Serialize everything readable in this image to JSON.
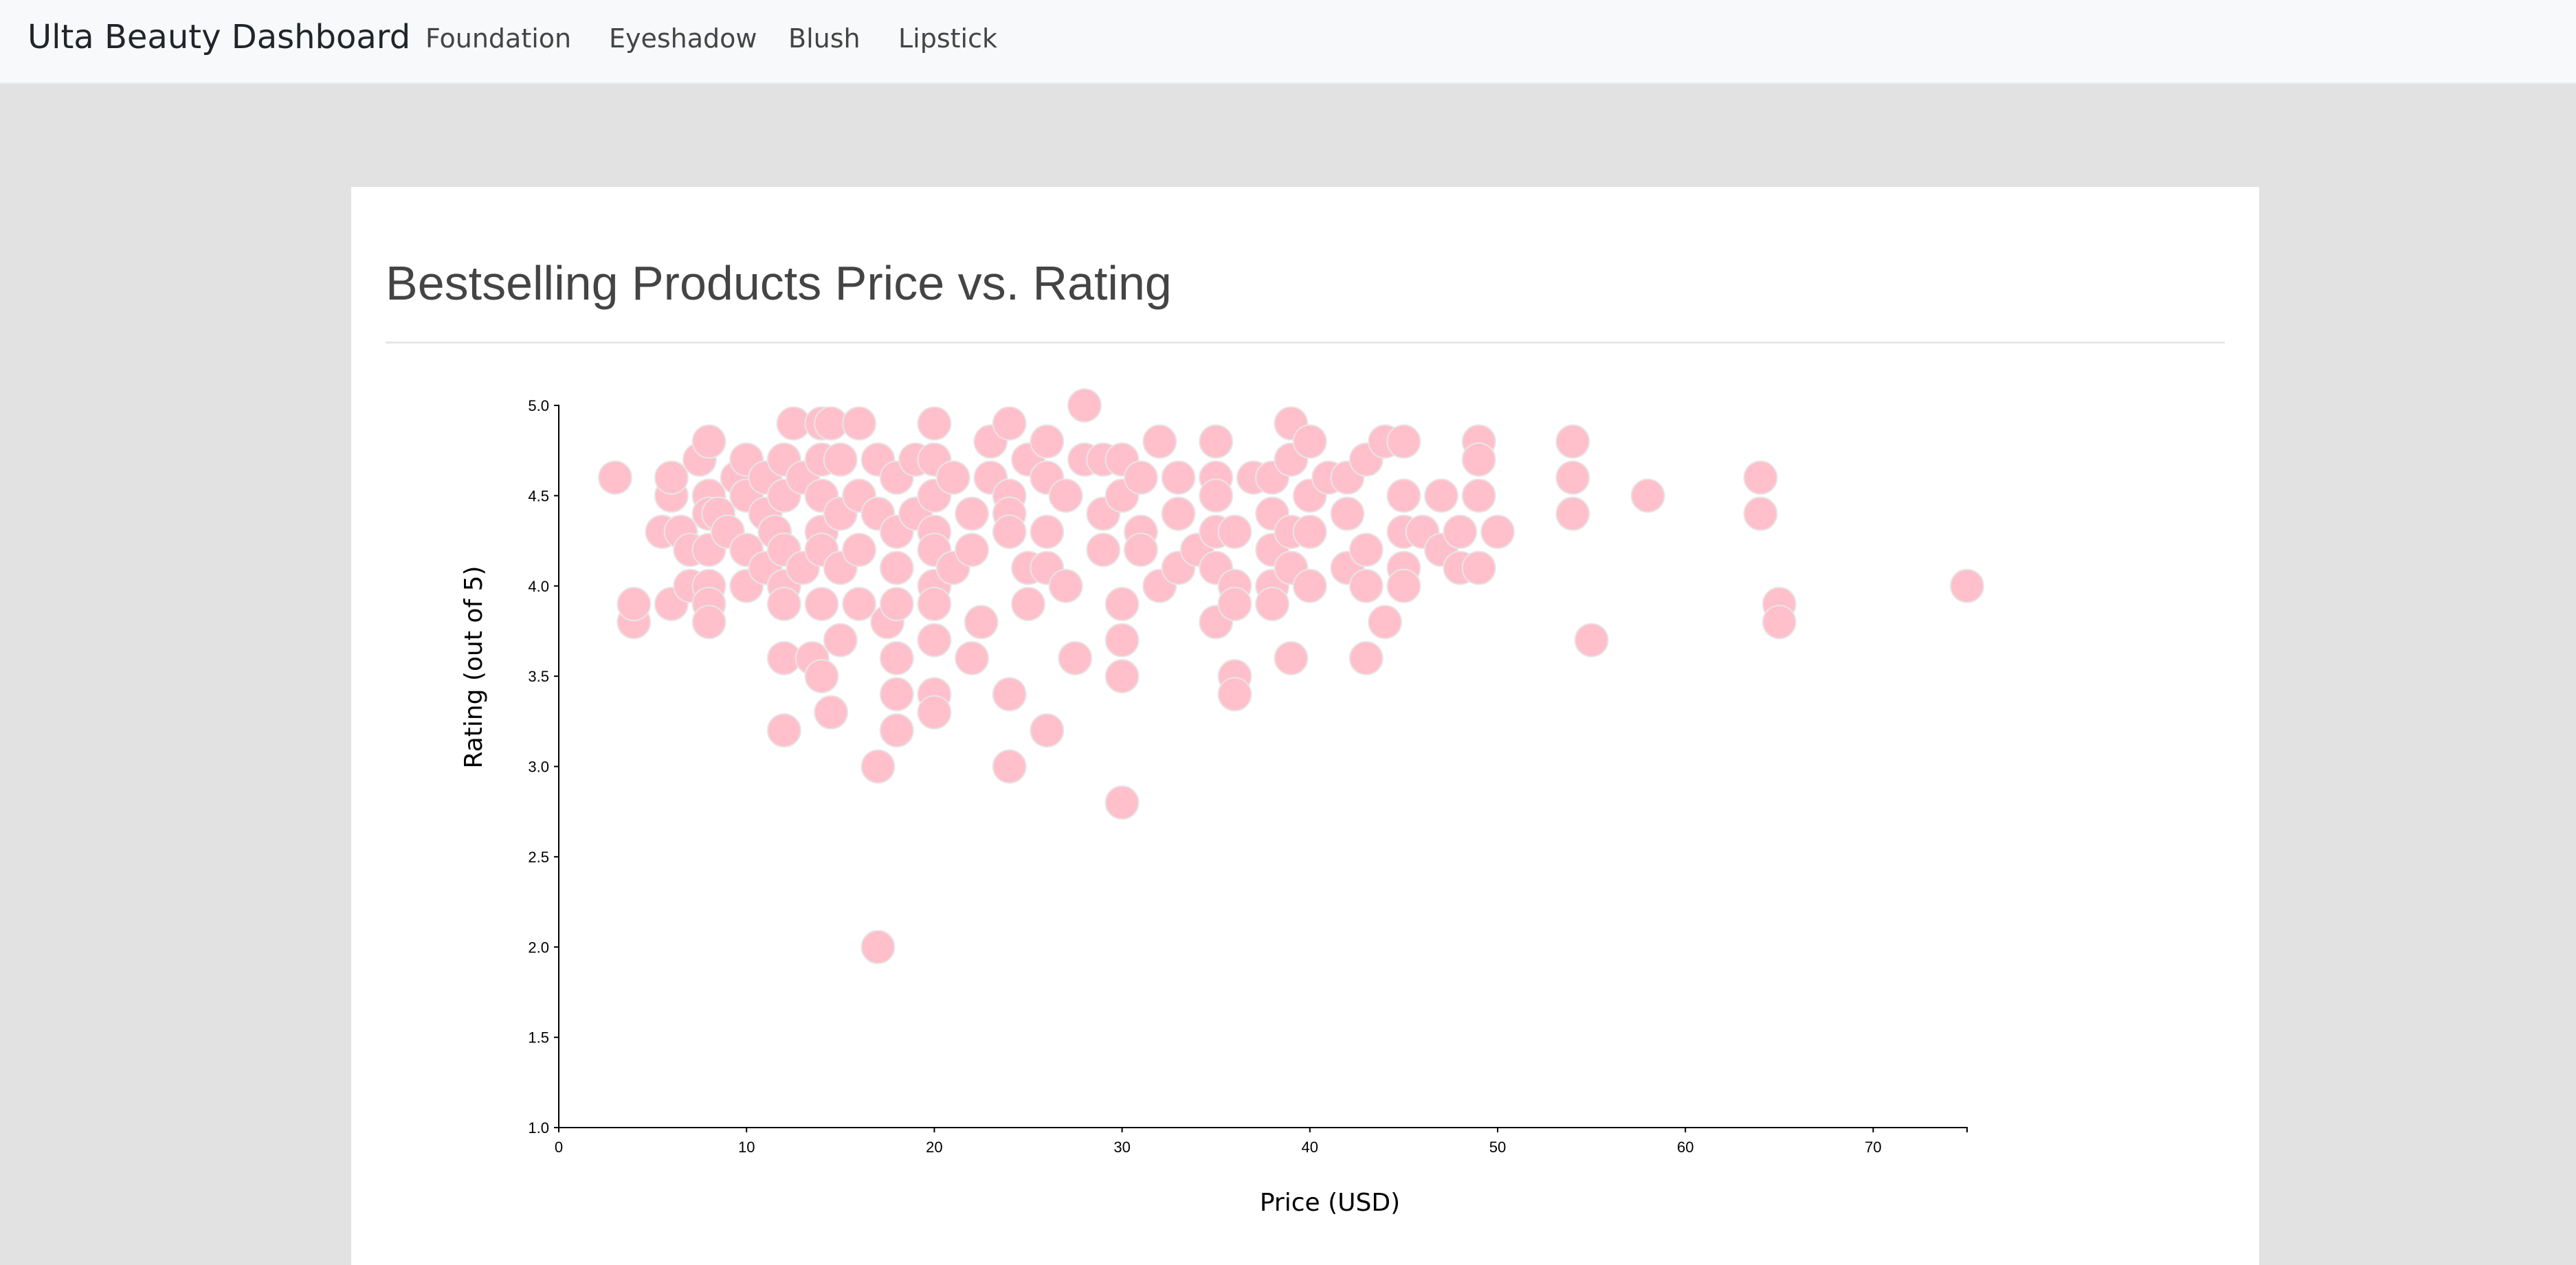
{
  "navbar": {
    "brand": "Ulta Beauty Dashboard",
    "links": [
      "Foundation",
      "Eyeshadow",
      "Blush",
      "Lipstick"
    ]
  },
  "page": {
    "title": "Bestselling Products Price vs. Rating"
  },
  "colors": {
    "point_fill": "#ffc0cb",
    "point_stroke": "#e6e6e6",
    "page_background": "#e2e2e2",
    "navbar_background": "#f8f9fa"
  },
  "chart_data": {
    "type": "scatter",
    "title": "",
    "xlabel": "Price (USD)",
    "ylabel": "Rating (out of 5)",
    "xlim": [
      0,
      75
    ],
    "ylim": [
      1.0,
      5.0
    ],
    "x_ticks": [
      "0",
      "10",
      "20",
      "30",
      "40",
      "50",
      "60",
      "70"
    ],
    "y_ticks": [
      "1.0",
      "1.5",
      "2.0",
      "2.5",
      "3.0",
      "3.5",
      "4.0",
      "4.5",
      "5.0"
    ],
    "grid": false,
    "points": [
      {
        "x": 3,
        "y": 4.6
      },
      {
        "x": 4,
        "y": 3.8
      },
      {
        "x": 4,
        "y": 3.9
      },
      {
        "x": 5.5,
        "y": 4.3
      },
      {
        "x": 6,
        "y": 4.5
      },
      {
        "x": 6,
        "y": 3.9
      },
      {
        "x": 6,
        "y": 4.6
      },
      {
        "x": 6.5,
        "y": 4.3
      },
      {
        "x": 7,
        "y": 4.2
      },
      {
        "x": 7,
        "y": 4.0
      },
      {
        "x": 7.5,
        "y": 4.7
      },
      {
        "x": 8,
        "y": 4.8
      },
      {
        "x": 8,
        "y": 4.5
      },
      {
        "x": 8,
        "y": 4.4
      },
      {
        "x": 8,
        "y": 4.2
      },
      {
        "x": 8,
        "y": 4.0
      },
      {
        "x": 8,
        "y": 3.9
      },
      {
        "x": 8,
        "y": 3.8
      },
      {
        "x": 8.5,
        "y": 4.4
      },
      {
        "x": 9,
        "y": 4.3
      },
      {
        "x": 9.5,
        "y": 4.6
      },
      {
        "x": 10,
        "y": 4.7
      },
      {
        "x": 10,
        "y": 4.5
      },
      {
        "x": 10,
        "y": 4.2
      },
      {
        "x": 10,
        "y": 4.0
      },
      {
        "x": 11,
        "y": 4.6
      },
      {
        "x": 11,
        "y": 4.4
      },
      {
        "x": 11,
        "y": 4.1
      },
      {
        "x": 11.5,
        "y": 4.3
      },
      {
        "x": 12,
        "y": 4.7
      },
      {
        "x": 12,
        "y": 4.5
      },
      {
        "x": 12,
        "y": 4.2
      },
      {
        "x": 12,
        "y": 4.0
      },
      {
        "x": 12,
        "y": 3.9
      },
      {
        "x": 12,
        "y": 3.6
      },
      {
        "x": 12,
        "y": 3.2
      },
      {
        "x": 12.5,
        "y": 4.9
      },
      {
        "x": 13,
        "y": 4.6
      },
      {
        "x": 13,
        "y": 4.1
      },
      {
        "x": 13.5,
        "y": 3.6
      },
      {
        "x": 14,
        "y": 4.9
      },
      {
        "x": 14,
        "y": 4.7
      },
      {
        "x": 14,
        "y": 4.5
      },
      {
        "x": 14,
        "y": 4.3
      },
      {
        "x": 14,
        "y": 4.2
      },
      {
        "x": 14,
        "y": 3.9
      },
      {
        "x": 14,
        "y": 3.5
      },
      {
        "x": 14.5,
        "y": 4.9
      },
      {
        "x": 14.5,
        "y": 3.3
      },
      {
        "x": 15,
        "y": 4.7
      },
      {
        "x": 15,
        "y": 4.4
      },
      {
        "x": 15,
        "y": 4.1
      },
      {
        "x": 15,
        "y": 3.7
      },
      {
        "x": 16,
        "y": 4.9
      },
      {
        "x": 16,
        "y": 4.5
      },
      {
        "x": 16,
        "y": 4.2
      },
      {
        "x": 16,
        "y": 3.9
      },
      {
        "x": 17,
        "y": 4.7
      },
      {
        "x": 17,
        "y": 4.4
      },
      {
        "x": 17,
        "y": 3.0
      },
      {
        "x": 17,
        "y": 2.0
      },
      {
        "x": 17.5,
        "y": 3.8
      },
      {
        "x": 18,
        "y": 4.6
      },
      {
        "x": 18,
        "y": 4.3
      },
      {
        "x": 18,
        "y": 4.1
      },
      {
        "x": 18,
        "y": 3.9
      },
      {
        "x": 18,
        "y": 3.6
      },
      {
        "x": 18,
        "y": 3.4
      },
      {
        "x": 18,
        "y": 3.2
      },
      {
        "x": 19,
        "y": 4.7
      },
      {
        "x": 19,
        "y": 4.4
      },
      {
        "x": 20,
        "y": 4.9
      },
      {
        "x": 20,
        "y": 4.7
      },
      {
        "x": 20,
        "y": 4.5
      },
      {
        "x": 20,
        "y": 4.3
      },
      {
        "x": 20,
        "y": 4.2
      },
      {
        "x": 20,
        "y": 4.0
      },
      {
        "x": 20,
        "y": 3.9
      },
      {
        "x": 20,
        "y": 3.7
      },
      {
        "x": 20,
        "y": 3.4
      },
      {
        "x": 20,
        "y": 3.3
      },
      {
        "x": 21,
        "y": 4.6
      },
      {
        "x": 21,
        "y": 4.1
      },
      {
        "x": 22,
        "y": 4.4
      },
      {
        "x": 22,
        "y": 4.2
      },
      {
        "x": 22,
        "y": 3.6
      },
      {
        "x": 22.5,
        "y": 3.8
      },
      {
        "x": 23,
        "y": 4.8
      },
      {
        "x": 23,
        "y": 4.6
      },
      {
        "x": 24,
        "y": 4.9
      },
      {
        "x": 24,
        "y": 4.5
      },
      {
        "x": 24,
        "y": 4.4
      },
      {
        "x": 24,
        "y": 4.3
      },
      {
        "x": 24,
        "y": 3.4
      },
      {
        "x": 24,
        "y": 3.0
      },
      {
        "x": 25,
        "y": 4.7
      },
      {
        "x": 25,
        "y": 4.1
      },
      {
        "x": 25,
        "y": 3.9
      },
      {
        "x": 26,
        "y": 4.8
      },
      {
        "x": 26,
        "y": 4.6
      },
      {
        "x": 26,
        "y": 4.3
      },
      {
        "x": 26,
        "y": 4.1
      },
      {
        "x": 26,
        "y": 3.2
      },
      {
        "x": 27,
        "y": 4.5
      },
      {
        "x": 27,
        "y": 4.0
      },
      {
        "x": 27.5,
        "y": 3.6
      },
      {
        "x": 28,
        "y": 5.0
      },
      {
        "x": 28,
        "y": 4.7
      },
      {
        "x": 29,
        "y": 4.7
      },
      {
        "x": 29,
        "y": 4.4
      },
      {
        "x": 29,
        "y": 4.2
      },
      {
        "x": 30,
        "y": 4.7
      },
      {
        "x": 30,
        "y": 4.5
      },
      {
        "x": 30,
        "y": 3.9
      },
      {
        "x": 30,
        "y": 3.7
      },
      {
        "x": 30,
        "y": 3.5
      },
      {
        "x": 30,
        "y": 2.8
      },
      {
        "x": 31,
        "y": 4.6
      },
      {
        "x": 31,
        "y": 4.3
      },
      {
        "x": 31,
        "y": 4.2
      },
      {
        "x": 32,
        "y": 4.8
      },
      {
        "x": 32,
        "y": 4.0
      },
      {
        "x": 33,
        "y": 4.6
      },
      {
        "x": 33,
        "y": 4.4
      },
      {
        "x": 33,
        "y": 4.1
      },
      {
        "x": 34,
        "y": 4.2
      },
      {
        "x": 35,
        "y": 4.8
      },
      {
        "x": 35,
        "y": 4.6
      },
      {
        "x": 35,
        "y": 4.5
      },
      {
        "x": 35,
        "y": 4.3
      },
      {
        "x": 35,
        "y": 4.1
      },
      {
        "x": 35,
        "y": 3.8
      },
      {
        "x": 36,
        "y": 4.3
      },
      {
        "x": 36,
        "y": 4.0
      },
      {
        "x": 36,
        "y": 3.9
      },
      {
        "x": 36,
        "y": 3.5
      },
      {
        "x": 36,
        "y": 3.4
      },
      {
        "x": 37,
        "y": 4.6
      },
      {
        "x": 38,
        "y": 4.6
      },
      {
        "x": 38,
        "y": 4.4
      },
      {
        "x": 38,
        "y": 4.2
      },
      {
        "x": 38,
        "y": 4.0
      },
      {
        "x": 38,
        "y": 3.9
      },
      {
        "x": 39,
        "y": 4.9
      },
      {
        "x": 39,
        "y": 4.7
      },
      {
        "x": 39,
        "y": 4.3
      },
      {
        "x": 39,
        "y": 4.1
      },
      {
        "x": 39,
        "y": 3.6
      },
      {
        "x": 40,
        "y": 4.8
      },
      {
        "x": 40,
        "y": 4.5
      },
      {
        "x": 40,
        "y": 4.3
      },
      {
        "x": 40,
        "y": 4.0
      },
      {
        "x": 41,
        "y": 4.6
      },
      {
        "x": 42,
        "y": 4.6
      },
      {
        "x": 42,
        "y": 4.4
      },
      {
        "x": 42,
        "y": 4.1
      },
      {
        "x": 43,
        "y": 4.7
      },
      {
        "x": 43,
        "y": 4.2
      },
      {
        "x": 43,
        "y": 4.0
      },
      {
        "x": 43,
        "y": 3.6
      },
      {
        "x": 44,
        "y": 4.8
      },
      {
        "x": 44,
        "y": 3.8
      },
      {
        "x": 45,
        "y": 4.8
      },
      {
        "x": 45,
        "y": 4.5
      },
      {
        "x": 45,
        "y": 4.3
      },
      {
        "x": 45,
        "y": 4.1
      },
      {
        "x": 45,
        "y": 4.0
      },
      {
        "x": 46,
        "y": 4.3
      },
      {
        "x": 47,
        "y": 4.5
      },
      {
        "x": 47,
        "y": 4.2
      },
      {
        "x": 48,
        "y": 4.3
      },
      {
        "x": 48,
        "y": 4.1
      },
      {
        "x": 49,
        "y": 4.8
      },
      {
        "x": 49,
        "y": 4.7
      },
      {
        "x": 49,
        "y": 4.5
      },
      {
        "x": 49,
        "y": 4.1
      },
      {
        "x": 50,
        "y": 4.3
      },
      {
        "x": 54,
        "y": 4.8
      },
      {
        "x": 54,
        "y": 4.6
      },
      {
        "x": 54,
        "y": 4.4
      },
      {
        "x": 55,
        "y": 3.7
      },
      {
        "x": 58,
        "y": 4.5
      },
      {
        "x": 64,
        "y": 4.6
      },
      {
        "x": 64,
        "y": 4.4
      },
      {
        "x": 65,
        "y": 3.9
      },
      {
        "x": 65,
        "y": 3.8
      },
      {
        "x": 75,
        "y": 4.0
      }
    ]
  }
}
